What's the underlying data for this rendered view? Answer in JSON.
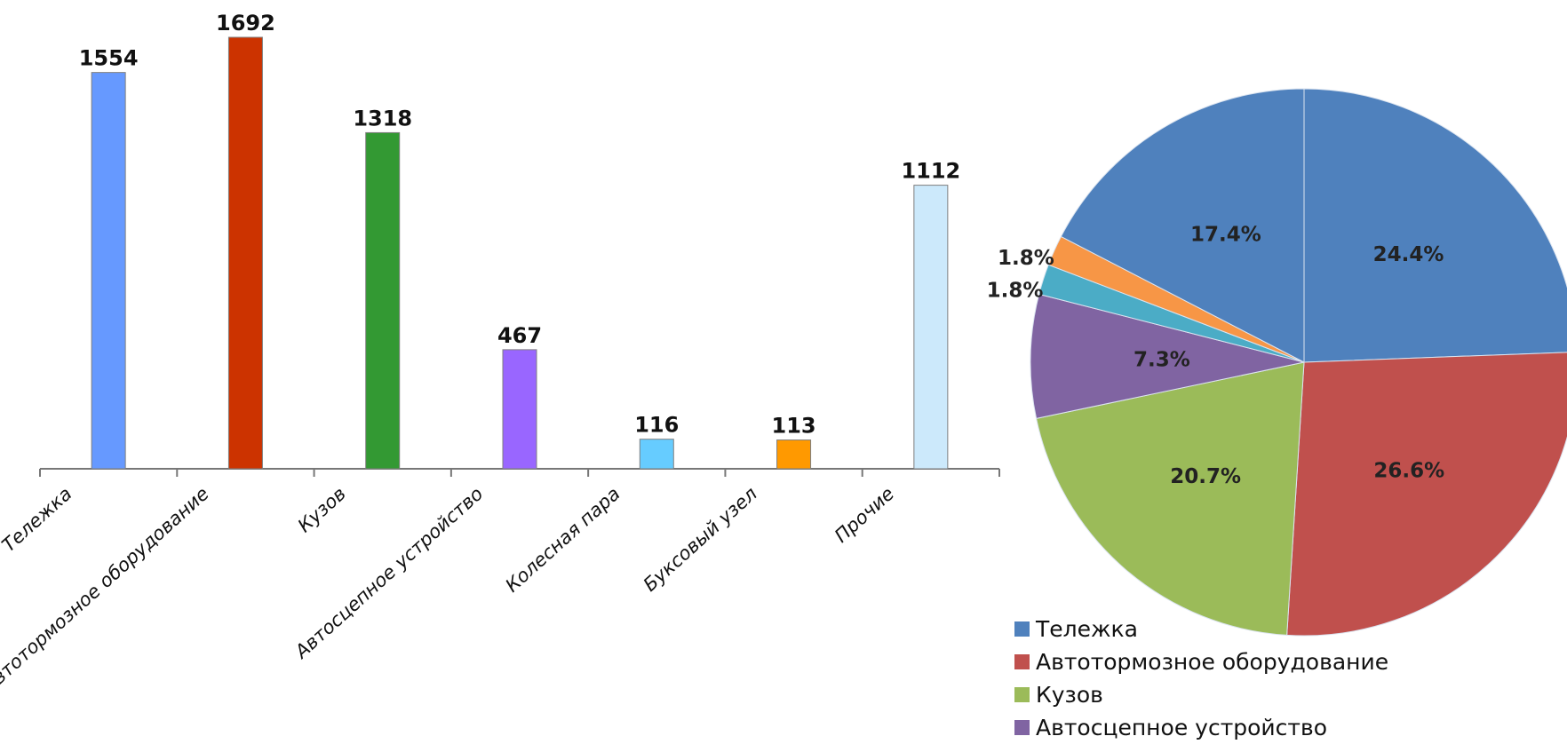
{
  "chart_data": [
    {
      "type": "bar",
      "categories": [
        "Тележка",
        "Автотормозное оборудование",
        "Кузов",
        "Автосцепное устройство",
        "Колесная пара",
        "Буксовый узел",
        "Прочие"
      ],
      "values": [
        1554,
        1692,
        1318,
        467,
        116,
        113,
        1112
      ],
      "data_labels": [
        "1554",
        "1692",
        "1318",
        "467",
        "116",
        "113",
        "1112"
      ],
      "colors": [
        "#6699ff",
        "#cc3300",
        "#339933",
        "#9966ff",
        "#66ccff",
        "#ff9900",
        "#cce9fb"
      ],
      "ylim": [
        0,
        1692
      ],
      "grid": false,
      "title": "",
      "xlabel": "",
      "ylabel": ""
    },
    {
      "type": "pie",
      "categories": [
        "Тележка",
        "Автотормозное оборудование",
        "Кузов",
        "Автосцепное устройство",
        "Колесная пара",
        "Буксовый узел",
        "Прочие"
      ],
      "values": [
        24.4,
        26.6,
        20.7,
        7.3,
        1.8,
        1.8,
        17.4
      ],
      "data_labels": [
        "24.4%",
        "26.6%",
        "20.7%",
        "7.3%",
        "1.8%",
        "1.8%",
        "17.4%"
      ],
      "colors": [
        "#4f81bd",
        "#c0504d",
        "#9bbb59",
        "#8064a2",
        "#4bacc6",
        "#f79646",
        "#4f81bd"
      ],
      "legend": {
        "placement": "bottom",
        "entries": [
          "Тележка",
          "Автотормозное оборудование",
          "Кузов",
          "Автосцепное устройство"
        ]
      },
      "title": ""
    }
  ]
}
